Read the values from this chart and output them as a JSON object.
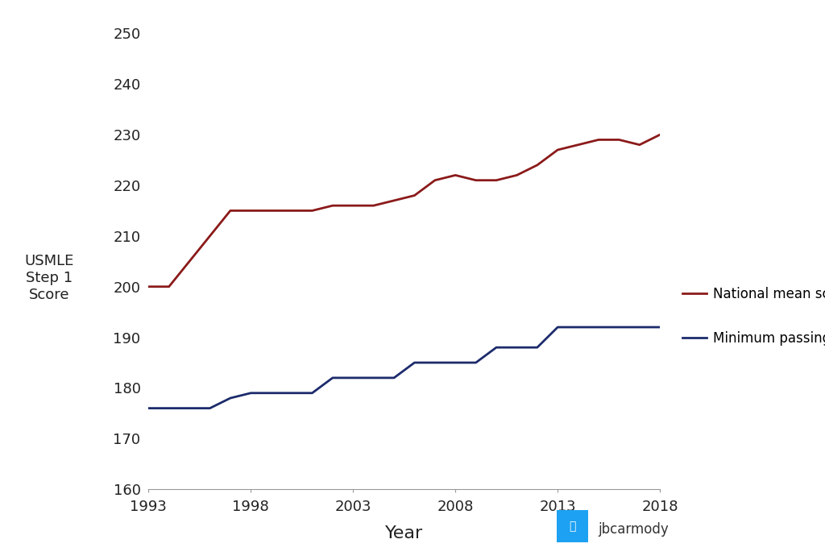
{
  "national_mean": {
    "years": [
      1993,
      1994,
      1995,
      1996,
      1997,
      1998,
      1999,
      2000,
      2001,
      2002,
      2003,
      2004,
      2005,
      2006,
      2007,
      2008,
      2009,
      2010,
      2011,
      2012,
      2013,
      2014,
      2015,
      2016,
      2017,
      2018
    ],
    "scores": [
      200,
      200,
      205,
      210,
      215,
      215,
      215,
      215,
      215,
      216,
      216,
      216,
      217,
      218,
      221,
      222,
      221,
      221,
      222,
      224,
      227,
      228,
      229,
      229,
      228,
      230
    ]
  },
  "min_passing": {
    "years": [
      1993,
      1994,
      1995,
      1996,
      1997,
      1998,
      1999,
      2000,
      2001,
      2002,
      2003,
      2004,
      2005,
      2006,
      2007,
      2008,
      2009,
      2010,
      2011,
      2012,
      2013,
      2014,
      2015,
      2016,
      2017,
      2018
    ],
    "scores": [
      176,
      176,
      176,
      176,
      178,
      179,
      179,
      179,
      179,
      182,
      182,
      182,
      182,
      185,
      185,
      185,
      185,
      188,
      188,
      188,
      192,
      192,
      192,
      192,
      192,
      192
    ]
  },
  "mean_color": "#8B1A1A",
  "passing_color": "#1C2B6B",
  "ylabel_lines": [
    "USMLE",
    "Step 1",
    "Score"
  ],
  "xlabel": "Year",
  "ylim": [
    160,
    250
  ],
  "xlim": [
    1993,
    2018
  ],
  "yticks": [
    160,
    170,
    180,
    190,
    200,
    210,
    220,
    230,
    240,
    250
  ],
  "xticks": [
    1993,
    1998,
    2003,
    2008,
    2013,
    2018
  ],
  "legend_mean": "National mean score",
  "legend_passing": "Minimum passing score",
  "twitter_color": "#1DA1F2",
  "twitter_text": "jbcarmody",
  "background_color": "#ffffff"
}
